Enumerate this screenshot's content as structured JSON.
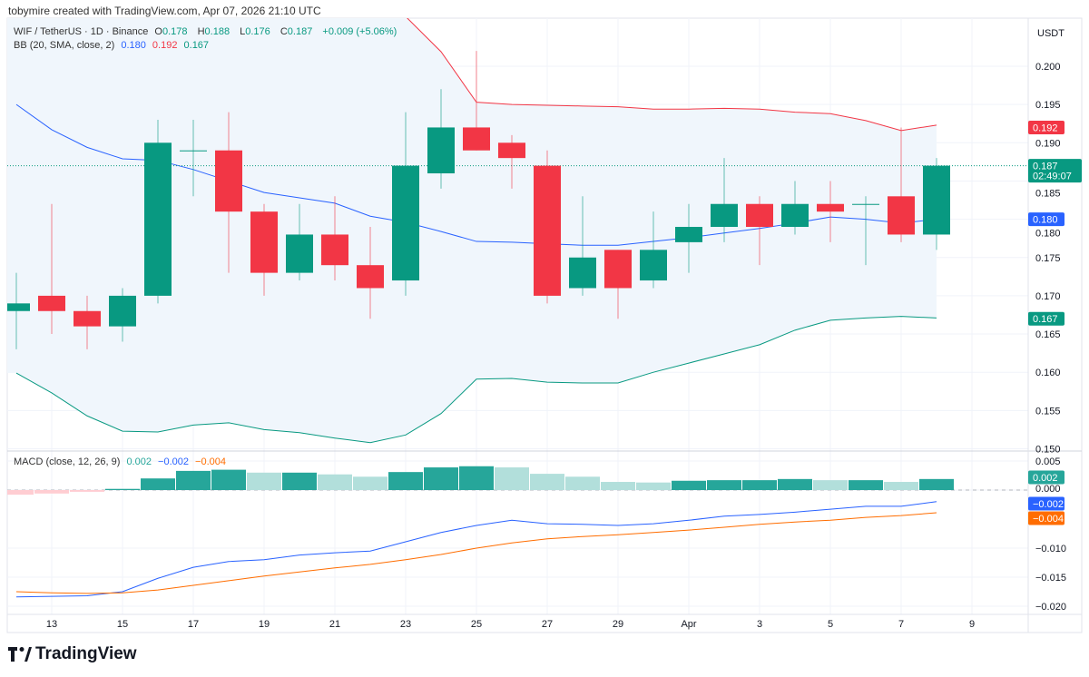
{
  "credit": "tobymire created with TradingView.com, Apr 07, 2026 21:10 UTC",
  "legend": {
    "symbol": "WIF / TetherUS · 1D · Binance",
    "o_label": "O",
    "o": "0.178",
    "h_label": "H",
    "h": "0.188",
    "l_label": "L",
    "l": "0.176",
    "c_label": "C",
    "c": "0.187",
    "change": "+0.009 (+5.06%)",
    "bb_label": "BB (20, SMA, close, 2)",
    "bb_basis": "0.180",
    "bb_upper": "0.192",
    "bb_lower": "0.167",
    "macd_label": "MACD (close, 12, 26, 9)",
    "macd_hist": "0.002",
    "macd_line": "−0.002",
    "macd_signal": "−0.004"
  },
  "currency": "USDT",
  "colors": {
    "up": "#089981",
    "down": "#f23645",
    "basis": "#2962ff",
    "upper": "#f23645",
    "lower": "#089981",
    "macd": "#2962ff",
    "signal": "#ff6d00",
    "hist_up": "#26a69a",
    "hist_up_fade": "#b2dfdb",
    "hist_dn_fade": "#ffcdd2",
    "band_fill": "#f0f6fc"
  },
  "price_axis": [
    "0.200",
    "0.195",
    "0.190",
    "0.185",
    "0.180",
    "0.175",
    "0.170",
    "0.165",
    "0.160",
    "0.155",
    "0.150"
  ],
  "price_badges": [
    {
      "value": "0.192",
      "color": "#f23645"
    },
    {
      "value": "0.187",
      "sub": "02:49:07",
      "color": "#089981"
    },
    {
      "value": "0.180",
      "color": "#2962ff"
    },
    {
      "value": "0.167",
      "color": "#089981"
    }
  ],
  "macd_axis": [
    "0.005",
    "0.000",
    "−0.010",
    "−0.015",
    "−0.020"
  ],
  "macd_badges": [
    {
      "value": "0.002",
      "color": "#26a69a"
    },
    {
      "value": "−0.002",
      "color": "#2962ff"
    },
    {
      "value": "−0.004",
      "color": "#ff6d00"
    }
  ],
  "time_axis": [
    "13",
    "15",
    "17",
    "19",
    "21",
    "23",
    "25",
    "27",
    "29",
    "Apr",
    "3",
    "5",
    "7",
    "9"
  ],
  "logo": "TradingView",
  "chart_data": {
    "type": "candlestick",
    "dates": [
      "Mar 12",
      "Mar 13",
      "Mar 14",
      "Mar 15",
      "Mar 16",
      "Mar 17",
      "Mar 18",
      "Mar 19",
      "Mar 20",
      "Mar 21",
      "Mar 22",
      "Mar 23",
      "Mar 24",
      "Mar 25",
      "Mar 26",
      "Mar 27",
      "Mar 28",
      "Mar 29",
      "Mar 30",
      "Mar 31",
      "Apr 1",
      "Apr 2",
      "Apr 3",
      "Apr 4",
      "Apr 5",
      "Apr 6",
      "Apr 7"
    ],
    "ohlc": [
      [
        0.168,
        0.173,
        0.163,
        0.169
      ],
      [
        0.17,
        0.182,
        0.165,
        0.168
      ],
      [
        0.168,
        0.17,
        0.163,
        0.166
      ],
      [
        0.166,
        0.171,
        0.164,
        0.17
      ],
      [
        0.17,
        0.193,
        0.169,
        0.19
      ],
      [
        0.189,
        0.193,
        0.183,
        0.189
      ],
      [
        0.189,
        0.194,
        0.173,
        0.181
      ],
      [
        0.181,
        0.182,
        0.17,
        0.173
      ],
      [
        0.173,
        0.182,
        0.172,
        0.178
      ],
      [
        0.178,
        0.183,
        0.172,
        0.174
      ],
      [
        0.174,
        0.179,
        0.167,
        0.171
      ],
      [
        0.172,
        0.194,
        0.17,
        0.187
      ],
      [
        0.186,
        0.197,
        0.184,
        0.192
      ],
      [
        0.192,
        0.202,
        0.189,
        0.189
      ],
      [
        0.19,
        0.191,
        0.184,
        0.188
      ],
      [
        0.187,
        0.189,
        0.169,
        0.17
      ],
      [
        0.171,
        0.183,
        0.17,
        0.175
      ],
      [
        0.176,
        0.176,
        0.167,
        0.171
      ],
      [
        0.172,
        0.181,
        0.171,
        0.176
      ],
      [
        0.177,
        0.182,
        0.173,
        0.179
      ],
      [
        0.179,
        0.188,
        0.177,
        0.182
      ],
      [
        0.182,
        0.183,
        0.174,
        0.179
      ],
      [
        0.179,
        0.185,
        0.178,
        0.182
      ],
      [
        0.182,
        0.185,
        0.177,
        0.181
      ],
      [
        0.182,
        0.183,
        0.174,
        0.182
      ],
      [
        0.183,
        0.192,
        0.177,
        0.178
      ],
      [
        0.178,
        0.188,
        0.176,
        0.187
      ]
    ],
    "bb_basis": [
      0.195,
      0.1917,
      0.1894,
      0.1879,
      0.1877,
      0.1865,
      0.185,
      0.1835,
      0.1828,
      0.1821,
      0.1804,
      0.1796,
      0.1784,
      0.1771,
      0.177,
      0.1768,
      0.1766,
      0.1766,
      0.1771,
      0.1776,
      0.1782,
      0.1788,
      0.1795,
      0.1803,
      0.18,
      0.1795,
      0.18
    ],
    "bb_upper": [
      null,
      null,
      null,
      null,
      null,
      null,
      null,
      null,
      null,
      null,
      null,
      0.2065,
      0.2019,
      0.1953,
      0.195,
      0.1949,
      0.1948,
      0.1947,
      0.1944,
      0.1944,
      0.1945,
      0.1944,
      0.194,
      0.1938,
      0.1929,
      0.1916,
      0.1923
    ],
    "bb_lower": [
      0.1599,
      0.1573,
      0.1543,
      0.1523,
      0.1522,
      0.1531,
      0.1534,
      0.1525,
      0.1521,
      0.1514,
      0.1508,
      0.1518,
      0.1546,
      0.1591,
      0.1592,
      0.1587,
      0.1586,
      0.1586,
      0.16,
      0.1612,
      0.1624,
      0.1636,
      0.1655,
      0.1668,
      0.1671,
      0.1673,
      0.1671
    ],
    "macd_hist": [
      -0.0008,
      -0.0006,
      -0.0003,
      0.0002,
      0.002,
      0.0033,
      0.0035,
      0.003,
      0.003,
      0.0027,
      0.0023,
      0.0031,
      0.0039,
      0.0041,
      0.0039,
      0.0028,
      0.0023,
      0.0014,
      0.0013,
      0.0016,
      0.0017,
      0.0017,
      0.0019,
      0.0017,
      0.0017,
      0.0014,
      0.0019
    ],
    "macd_line": [
      -0.0184,
      -0.0183,
      -0.0182,
      -0.0175,
      -0.0152,
      -0.0133,
      -0.0123,
      -0.012,
      -0.0112,
      -0.0108,
      -0.0105,
      -0.0089,
      -0.0073,
      -0.0061,
      -0.0052,
      -0.0058,
      -0.0059,
      -0.0061,
      -0.0058,
      -0.0052,
      -0.0045,
      -0.0042,
      -0.0038,
      -0.0033,
      -0.0028,
      -0.0028,
      -0.002
    ],
    "macd_signal": [
      -0.0175,
      -0.0177,
      -0.0178,
      -0.0177,
      -0.0172,
      -0.0164,
      -0.0156,
      -0.0148,
      -0.0141,
      -0.0134,
      -0.0128,
      -0.012,
      -0.0111,
      -0.01,
      -0.0091,
      -0.0084,
      -0.008,
      -0.0077,
      -0.0073,
      -0.0069,
      -0.0064,
      -0.0059,
      -0.0055,
      -0.0052,
      -0.0047,
      -0.0044,
      -0.0039
    ],
    "price_ylim": [
      0.15,
      0.2055
    ],
    "macd_ylim": [
      -0.021,
      0.006
    ],
    "last_price": 0.187
  }
}
